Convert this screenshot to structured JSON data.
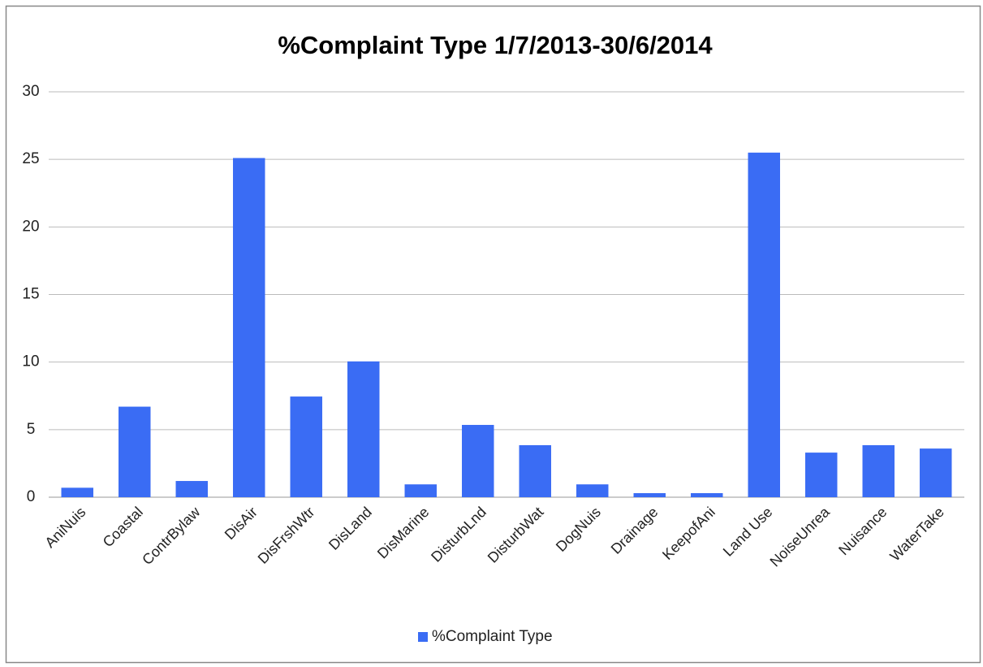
{
  "chart_data": {
    "type": "bar",
    "title": "%Complaint Type 1/7/2013-30/6/2014",
    "categories": [
      "AniNuis",
      "Coastal",
      "ContrBylaw",
      "DisAir",
      "DisFrshWtr",
      "DisLand",
      "DisMarine",
      "DisturbLnd",
      "DisturbWat",
      "DogNuis",
      "Drainage",
      "KeepofAni",
      "Land Use",
      "NoiseUnrea",
      "Nuisance",
      "WaterTake"
    ],
    "series": [
      {
        "name": "%Complaint Type",
        "color": "#3a6cf4",
        "values": [
          0.7,
          6.7,
          1.2,
          25.1,
          7.45,
          10.05,
          0.95,
          5.35,
          3.85,
          0.95,
          0.3,
          0.3,
          25.5,
          3.3,
          3.85,
          3.6
        ]
      }
    ],
    "ylim": [
      0,
      30
    ],
    "yticks": [
      0,
      5,
      10,
      15,
      20,
      25,
      30
    ],
    "grid": true,
    "legend": "bottom"
  }
}
